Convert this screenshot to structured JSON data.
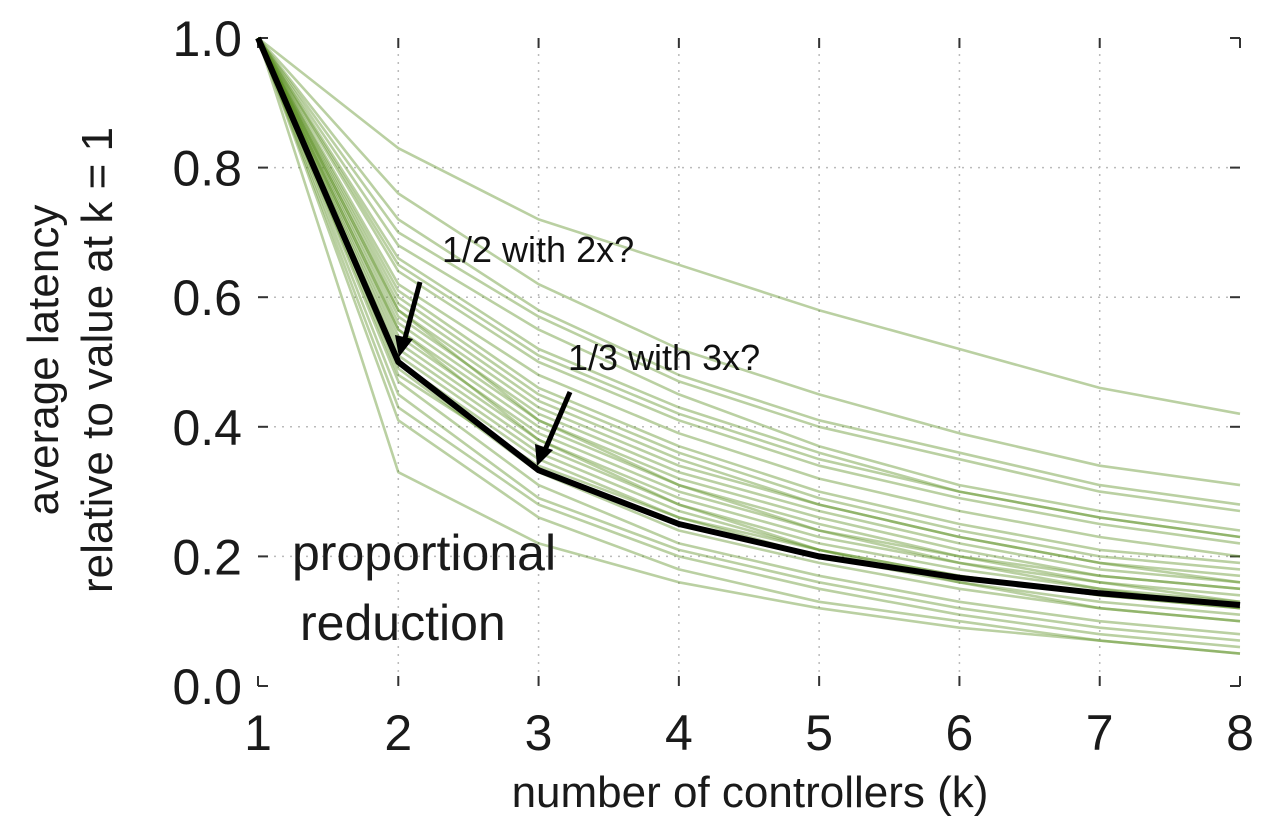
{
  "chart_data": {
    "type": "line",
    "xlabel": "number of controllers (k)",
    "ylabel_lines": [
      "average latency",
      "relative to value at k = 1"
    ],
    "xlim": [
      1,
      8
    ],
    "ylim": [
      0,
      1
    ],
    "x": [
      1,
      2,
      3,
      4,
      5,
      6,
      7,
      8
    ],
    "x_tick_labels": [
      "1",
      "2",
      "3",
      "4",
      "5",
      "6",
      "7",
      "8"
    ],
    "y_tick_labels": [
      "0.0",
      "0.2",
      "0.4",
      "0.6",
      "0.8",
      "1.0"
    ],
    "grid": true,
    "reference_series": {
      "values": [
        1.0,
        0.5,
        0.333,
        0.25,
        0.2,
        0.167,
        0.143,
        0.125
      ],
      "color": "#000000"
    },
    "series_color": "#5b8f22",
    "series": [
      {
        "values": [
          1.0,
          0.83,
          0.72,
          0.65,
          0.58,
          0.52,
          0.46,
          0.42
        ]
      },
      {
        "values": [
          1.0,
          0.76,
          0.62,
          0.52,
          0.45,
          0.39,
          0.34,
          0.31
        ]
      },
      {
        "values": [
          1.0,
          0.72,
          0.58,
          0.48,
          0.41,
          0.36,
          0.31,
          0.28
        ]
      },
      {
        "values": [
          1.0,
          0.68,
          0.55,
          0.45,
          0.37,
          0.31,
          0.27,
          0.24
        ]
      },
      {
        "values": [
          1.0,
          0.66,
          0.52,
          0.43,
          0.36,
          0.3,
          0.26,
          0.23
        ]
      },
      {
        "values": [
          1.0,
          0.64,
          0.5,
          0.41,
          0.34,
          0.29,
          0.25,
          0.22
        ]
      },
      {
        "values": [
          1.0,
          0.62,
          0.48,
          0.39,
          0.32,
          0.27,
          0.23,
          0.2
        ]
      },
      {
        "values": [
          1.0,
          0.61,
          0.46,
          0.37,
          0.3,
          0.25,
          0.21,
          0.19
        ]
      },
      {
        "values": [
          1.0,
          0.6,
          0.45,
          0.36,
          0.29,
          0.24,
          0.2,
          0.18
        ]
      },
      {
        "values": [
          1.0,
          0.59,
          0.44,
          0.35,
          0.28,
          0.23,
          0.19,
          0.17
        ]
      },
      {
        "values": [
          1.0,
          0.58,
          0.43,
          0.34,
          0.28,
          0.23,
          0.19,
          0.16
        ]
      },
      {
        "values": [
          1.0,
          0.57,
          0.42,
          0.33,
          0.27,
          0.22,
          0.18,
          0.16
        ]
      },
      {
        "values": [
          1.0,
          0.56,
          0.41,
          0.32,
          0.26,
          0.21,
          0.17,
          0.15
        ]
      },
      {
        "values": [
          1.0,
          0.55,
          0.4,
          0.31,
          0.25,
          0.2,
          0.17,
          0.15
        ]
      },
      {
        "values": [
          1.0,
          0.54,
          0.39,
          0.3,
          0.24,
          0.2,
          0.16,
          0.14
        ]
      },
      {
        "values": [
          1.0,
          0.53,
          0.38,
          0.29,
          0.23,
          0.19,
          0.16,
          0.13
        ]
      },
      {
        "values": [
          1.0,
          0.52,
          0.37,
          0.28,
          0.22,
          0.18,
          0.15,
          0.13
        ]
      },
      {
        "values": [
          1.0,
          0.51,
          0.36,
          0.27,
          0.21,
          0.17,
          0.14,
          0.12
        ]
      },
      {
        "values": [
          1.0,
          0.5,
          0.35,
          0.26,
          0.2,
          0.16,
          0.13,
          0.11
        ]
      },
      {
        "values": [
          1.0,
          0.49,
          0.33,
          0.24,
          0.19,
          0.15,
          0.12,
          0.1
        ]
      },
      {
        "values": [
          1.0,
          0.47,
          0.31,
          0.22,
          0.17,
          0.13,
          0.1,
          0.08
        ]
      },
      {
        "values": [
          1.0,
          0.45,
          0.29,
          0.21,
          0.16,
          0.12,
          0.09,
          0.07
        ]
      },
      {
        "values": [
          1.0,
          0.43,
          0.28,
          0.2,
          0.15,
          0.11,
          0.08,
          0.06
        ]
      },
      {
        "values": [
          1.0,
          0.41,
          0.26,
          0.18,
          0.13,
          0.1,
          0.07,
          0.05
        ]
      },
      {
        "values": [
          1.0,
          0.33,
          0.22,
          0.16,
          0.12,
          0.09,
          0.07,
          0.05
        ]
      },
      {
        "values": [
          1.0,
          0.7,
          0.57,
          0.47,
          0.4,
          0.35,
          0.3,
          0.27
        ]
      },
      {
        "values": [
          1.0,
          0.65,
          0.51,
          0.42,
          0.35,
          0.3,
          0.26,
          0.23
        ]
      },
      {
        "values": [
          1.0,
          0.58,
          0.41,
          0.31,
          0.24,
          0.19,
          0.15,
          0.12
        ]
      },
      {
        "values": [
          1.0,
          0.55,
          0.38,
          0.28,
          0.21,
          0.16,
          0.12,
          0.1
        ]
      },
      {
        "values": [
          1.0,
          0.48,
          0.34,
          0.26,
          0.21,
          0.17,
          0.14,
          0.12
        ]
      }
    ],
    "annotations": [
      {
        "text_lines": [
          "proportional",
          "reduction"
        ]
      },
      {
        "text": "1/2  with 2x?",
        "points_to": {
          "x": 2,
          "y": 0.5
        }
      },
      {
        "text": "1/3 with 3x?",
        "points_to": {
          "x": 3,
          "y": 0.333
        }
      }
    ]
  }
}
